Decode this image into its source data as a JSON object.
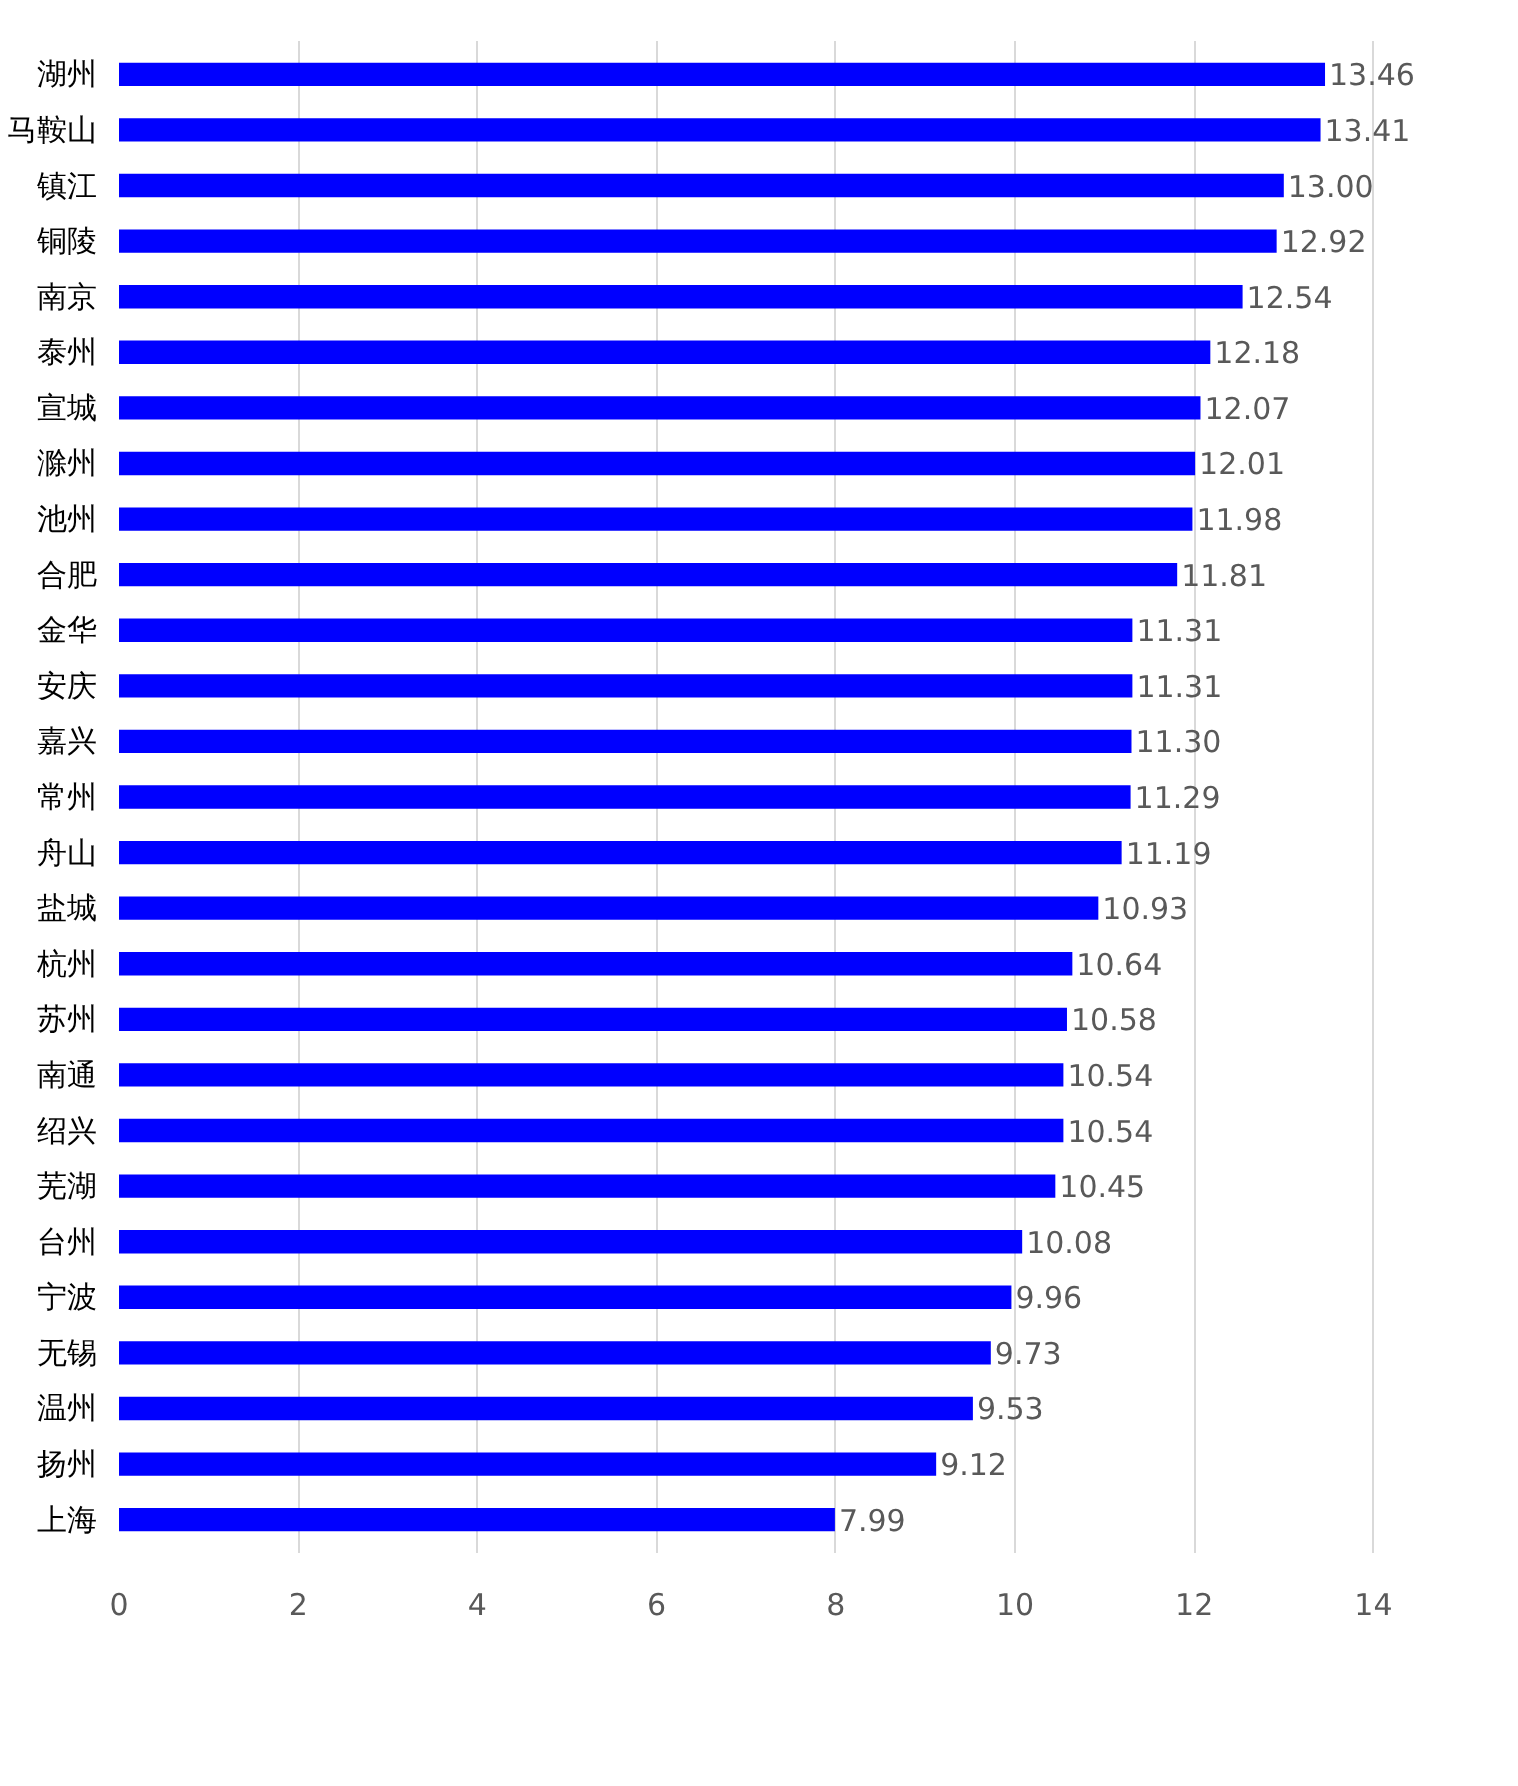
{
  "chart_data": {
    "type": "bar",
    "orientation": "horizontal",
    "categories": [
      "湖州",
      "马鞍山",
      "镇江",
      "铜陵",
      "南京",
      "泰州",
      "宣城",
      "滁州",
      "池州",
      "合肥",
      "金华",
      "安庆",
      "嘉兴",
      "常州",
      "舟山",
      "盐城",
      "杭州",
      "苏州",
      "南通",
      "绍兴",
      "芜湖",
      "台州",
      "宁波",
      "无锡",
      "温州",
      "扬州",
      "上海"
    ],
    "values": [
      13.46,
      13.41,
      13.0,
      12.92,
      12.54,
      12.18,
      12.07,
      12.01,
      11.98,
      11.81,
      11.31,
      11.31,
      11.3,
      11.29,
      11.19,
      10.93,
      10.64,
      10.58,
      10.54,
      10.54,
      10.45,
      10.08,
      9.96,
      9.73,
      9.53,
      9.12,
      7.99
    ],
    "value_labels": [
      "13.46",
      "13.41",
      "13.00",
      "12.92",
      "12.54",
      "12.18",
      "12.07",
      "12.01",
      "11.98",
      "11.81",
      "11.31",
      "11.31",
      "11.30",
      "11.29",
      "11.19",
      "10.93",
      "10.64",
      "10.58",
      "10.54",
      "10.54",
      "10.45",
      "10.08",
      "9.96",
      "9.73",
      "9.53",
      "9.12",
      "7.99"
    ],
    "color": "#0000ff",
    "xlim": [
      0,
      14
    ],
    "xticks": [
      0,
      2,
      4,
      6,
      8,
      10,
      12,
      14
    ],
    "grid": "x"
  }
}
